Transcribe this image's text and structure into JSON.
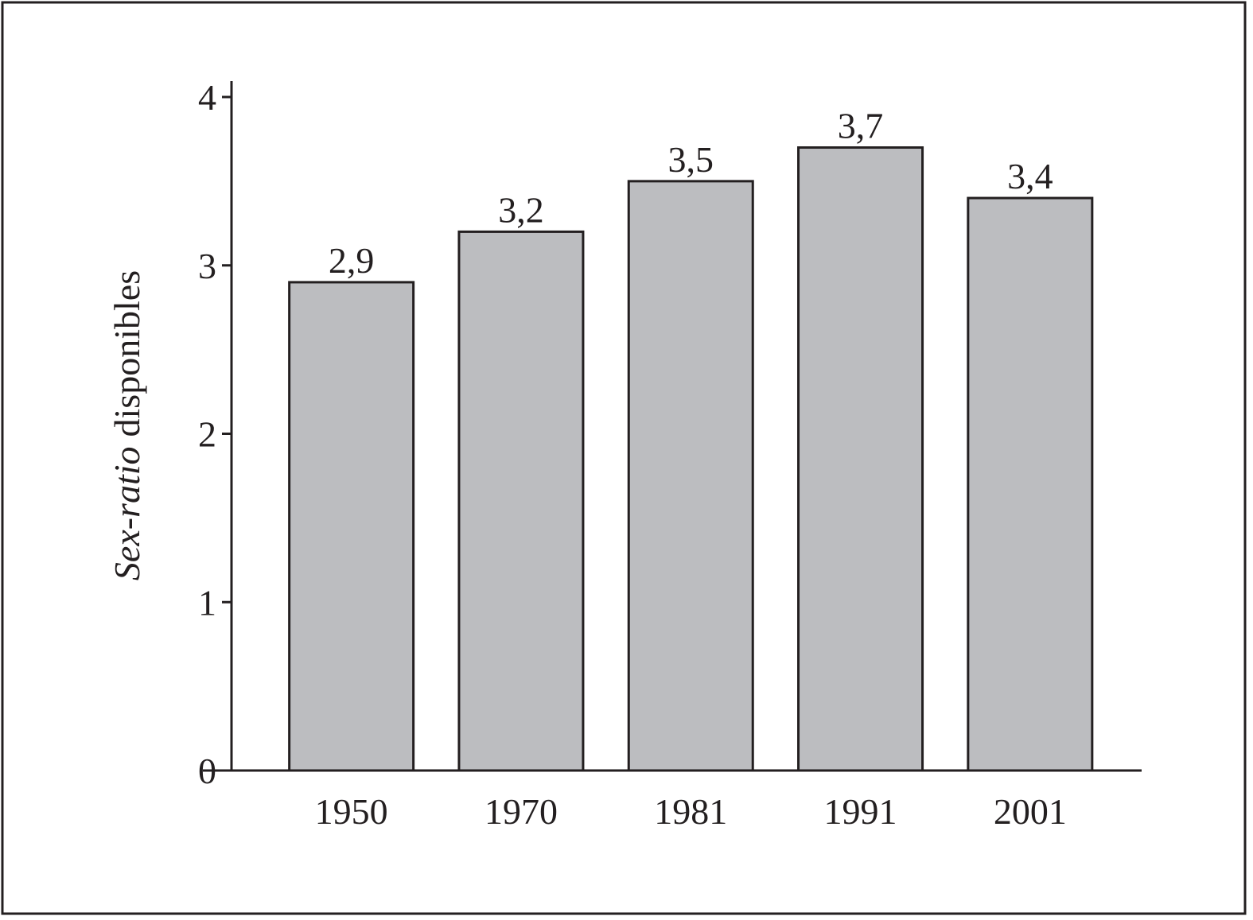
{
  "chart_data": {
    "type": "bar",
    "ylabel": [
      "Sex-ratio",
      "disponibles"
    ],
    "categories": [
      "1950",
      "1970",
      "1981",
      "1991",
      "2001"
    ],
    "values": [
      2.9,
      3.2,
      3.5,
      3.7,
      3.4
    ],
    "value_labels": [
      "2,9",
      "3,2",
      "3,5",
      "3,7",
      "3,4"
    ],
    "color": "#bcbdc0",
    "ylim": [
      0,
      4
    ],
    "yticks": [
      0,
      1,
      2,
      3,
      4
    ]
  }
}
